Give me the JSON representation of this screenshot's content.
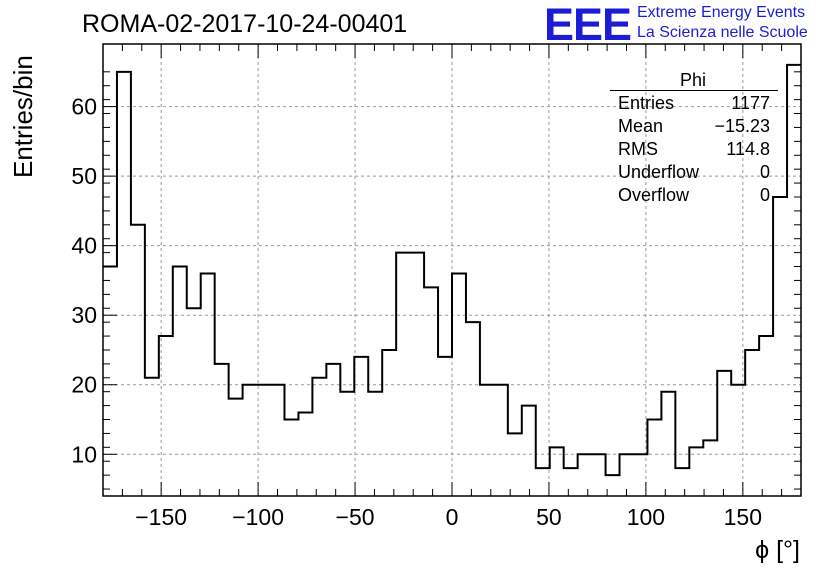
{
  "run_title": "ROMA-02-2017-10-24-00401",
  "logo": {
    "text": "EEE",
    "line1": "Extreme Energy Events",
    "line2": "La Scienza nelle Scuole",
    "color": "#1c1cd6"
  },
  "stats_box": {
    "title": "Phi",
    "rows": [
      {
        "label": "Entries",
        "value": "1177"
      },
      {
        "label": "Mean",
        "value": "−15.23"
      },
      {
        "label": "RMS",
        "value": "114.8"
      },
      {
        "label": "Underflow",
        "value": "0"
      },
      {
        "label": "Overflow",
        "value": "0"
      }
    ]
  },
  "chart_data": {
    "type": "histogram",
    "title": "",
    "xlabel": "ϕ [°]",
    "ylabel": "Entries/bin",
    "xlim": [
      -180,
      180
    ],
    "ylim": [
      4,
      69
    ],
    "xticks": [
      -150,
      -100,
      -50,
      0,
      50,
      100,
      150
    ],
    "xtick_labels": [
      "−150",
      "−100",
      "−50",
      "0",
      "50",
      "100",
      "150"
    ],
    "yticks": [
      10,
      20,
      30,
      40,
      50,
      60
    ],
    "grid": true,
    "bin_width": 7.2,
    "bin_edges_start": -180,
    "values": [
      37,
      65,
      43,
      21,
      27,
      37,
      31,
      36,
      23,
      18,
      20,
      20,
      20,
      15,
      16,
      21,
      23,
      19,
      24,
      19,
      25,
      39,
      39,
      34,
      24,
      36,
      29,
      20,
      20,
      13,
      17,
      8,
      11,
      8,
      10,
      10,
      7,
      10,
      10,
      15,
      19,
      8,
      11,
      12,
      22,
      20,
      25,
      27,
      47,
      66
    ],
    "line_color": "#000000"
  }
}
